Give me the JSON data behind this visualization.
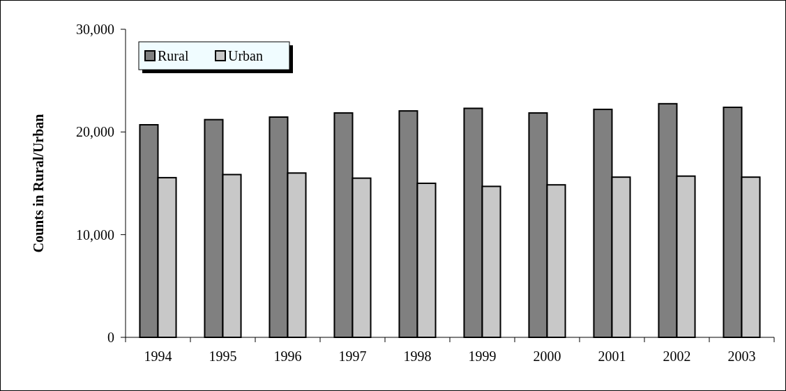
{
  "chart_data": {
    "type": "bar",
    "ylabel": "Counts in Rural/Urban",
    "categories": [
      "1994",
      "1995",
      "1996",
      "1997",
      "1998",
      "1999",
      "2000",
      "2001",
      "2002",
      "2003"
    ],
    "series": [
      {
        "name": "Rural",
        "color": "#808080",
        "values": [
          20700,
          21200,
          21450,
          21850,
          22050,
          22300,
          21850,
          22200,
          22750,
          22400
        ]
      },
      {
        "name": "Urban",
        "color": "#c8c8c8",
        "values": [
          15550,
          15850,
          16000,
          15500,
          15000,
          14700,
          14850,
          15600,
          15700,
          15600
        ]
      }
    ],
    "ylim": [
      0,
      30000
    ],
    "yticks": [
      {
        "value": 0,
        "label": "0"
      },
      {
        "value": 10000,
        "label": "10,000"
      },
      {
        "value": 20000,
        "label": "20,000"
      },
      {
        "value": 30000,
        "label": "30,000"
      }
    ],
    "legend": "top left"
  }
}
